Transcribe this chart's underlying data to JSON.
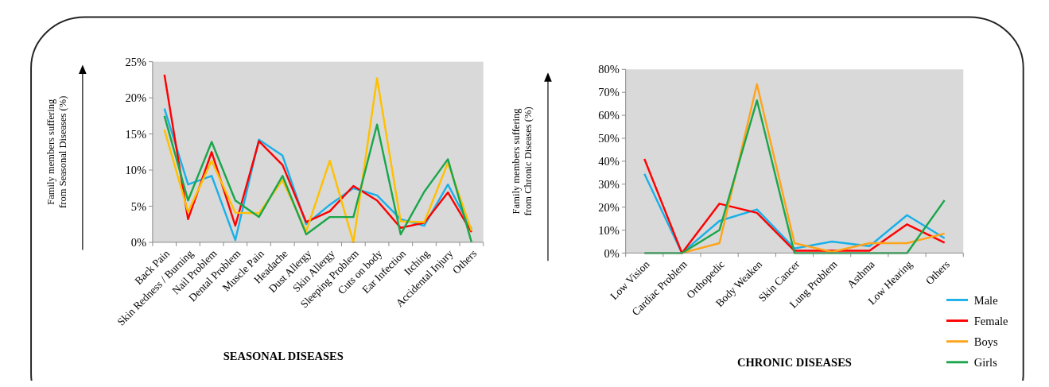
{
  "chart_data": [
    {
      "type": "line",
      "xlabel": "SEASONAL DISEASES",
      "ylabel": "Family members suffering from Seasonal Diseases (%)",
      "categories": [
        "Back Pain",
        "Skin Redness / Burning",
        "Nail Problem",
        "Dental Problem",
        "Muscle Pain",
        "Headache",
        "Dust Allergy",
        "Skin Allergy",
        "Sleeping Problem",
        "Cuts on body",
        "Ear Infection",
        "Itching",
        "Accidental Injury",
        "Others"
      ],
      "ylim": [
        0,
        25
      ],
      "yticks": [
        {
          "value": 0,
          "label": "0%"
        },
        {
          "value": 5,
          "label": "5%"
        },
        {
          "value": 10,
          "label": "10%"
        },
        {
          "value": 15,
          "label": "15%"
        },
        {
          "value": 20,
          "label": "20%"
        },
        {
          "value": 25,
          "label": "25%"
        }
      ],
      "grid": false,
      "legend": false,
      "series": [
        {
          "color": "#1ab0e8",
          "values": [
            18.5,
            8,
            9.2,
            0.3,
            14.2,
            12,
            2.5,
            5.2,
            7.5,
            6.5,
            3.2,
            2.3,
            8,
            1.8
          ]
        },
        {
          "color": "#ff0000",
          "values": [
            23.2,
            3.2,
            12.5,
            2.3,
            14,
            10.7,
            2.8,
            4.3,
            7.8,
            5.8,
            2,
            2.7,
            6.9,
            1.4
          ]
        },
        {
          "color": "#ffc000",
          "values": [
            15.6,
            4.2,
            11.3,
            4.1,
            4,
            8.6,
            1.5,
            11.3,
            0,
            22.7,
            2.9,
            2.8,
            11,
            1.6
          ]
        },
        {
          "color": "#1aa64a",
          "values": [
            17.5,
            5.8,
            13.9,
            5.8,
            3.5,
            9.2,
            1.1,
            3.5,
            3.5,
            16.3,
            1.1,
            7,
            11.5,
            0
          ]
        }
      ]
    },
    {
      "type": "line",
      "xlabel": "CHRONIC DISEASES",
      "ylabel": "Family members suffering from Chronic Diseases (%)",
      "categories": [
        "Low Vision",
        "Cardiac Problem",
        "Orthopedic",
        "Body Weaken",
        "Skin Cancer",
        "Lung Problem",
        "Asthma",
        "Low Hearing",
        "Others"
      ],
      "ylim": [
        0,
        80
      ],
      "yticks": [
        {
          "value": 0,
          "label": "0%"
        },
        {
          "value": 10,
          "label": "10%"
        },
        {
          "value": 20,
          "label": "20%"
        },
        {
          "value": 30,
          "label": "30%"
        },
        {
          "value": 40,
          "label": "40%"
        },
        {
          "value": 50,
          "label": "50%"
        },
        {
          "value": 60,
          "label": "60%"
        },
        {
          "value": 70,
          "label": "70%"
        },
        {
          "value": 80,
          "label": "80%"
        }
      ],
      "grid": false,
      "legend": "bottom right",
      "series": [
        {
          "name": "Male",
          "color": "#1ab0e8",
          "values": [
            34.5,
            0,
            14,
            19,
            2,
            5,
            3,
            16.5,
            6.5
          ]
        },
        {
          "name": "Female",
          "color": "#ff0000",
          "values": [
            41,
            0,
            21.5,
            17.5,
            1,
            1,
            1,
            12.5,
            4.5
          ]
        },
        {
          "name": "Boys",
          "color": "#ffa31a",
          "values": [
            null,
            0,
            4.3,
            73.5,
            4.3,
            0.5,
            4.3,
            4.3,
            8.5
          ]
        },
        {
          "name": "Girls",
          "color": "#1aa64a",
          "values": [
            0,
            0,
            10,
            66.5,
            0,
            0,
            0,
            0,
            23
          ]
        }
      ]
    }
  ]
}
